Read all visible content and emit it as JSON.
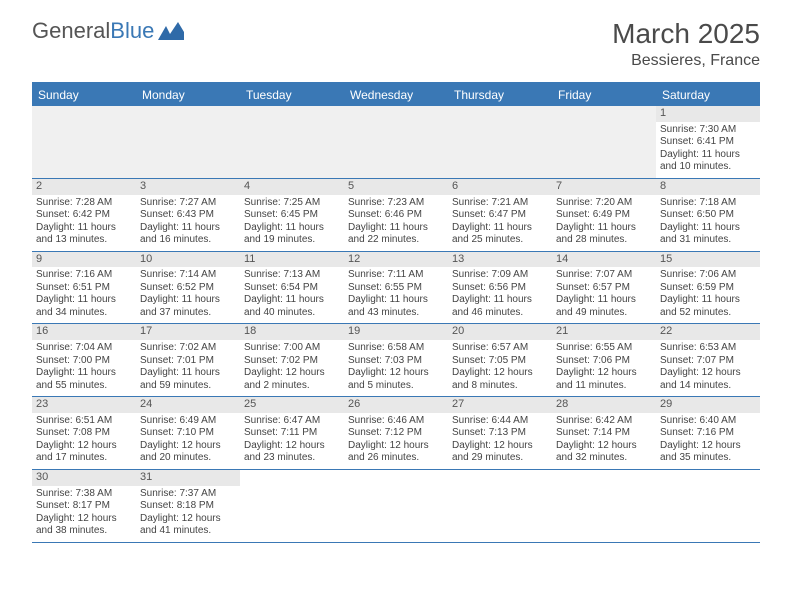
{
  "logo": {
    "general": "General",
    "blue": "Blue"
  },
  "title": "March 2025",
  "location": "Bessieres, France",
  "colors": {
    "accent": "#3a78b5",
    "strip": "#e8e8e8",
    "text": "#444444",
    "bg": "#ffffff"
  },
  "day_headers": [
    "Sunday",
    "Monday",
    "Tuesday",
    "Wednesday",
    "Thursday",
    "Friday",
    "Saturday"
  ],
  "weeks": [
    [
      null,
      null,
      null,
      null,
      null,
      null,
      {
        "n": "1",
        "sr": "7:30 AM",
        "ss": "6:41 PM",
        "dl": "11 hours and 10 minutes."
      }
    ],
    [
      {
        "n": "2",
        "sr": "7:28 AM",
        "ss": "6:42 PM",
        "dl": "11 hours and 13 minutes."
      },
      {
        "n": "3",
        "sr": "7:27 AM",
        "ss": "6:43 PM",
        "dl": "11 hours and 16 minutes."
      },
      {
        "n": "4",
        "sr": "7:25 AM",
        "ss": "6:45 PM",
        "dl": "11 hours and 19 minutes."
      },
      {
        "n": "5",
        "sr": "7:23 AM",
        "ss": "6:46 PM",
        "dl": "11 hours and 22 minutes."
      },
      {
        "n": "6",
        "sr": "7:21 AM",
        "ss": "6:47 PM",
        "dl": "11 hours and 25 minutes."
      },
      {
        "n": "7",
        "sr": "7:20 AM",
        "ss": "6:49 PM",
        "dl": "11 hours and 28 minutes."
      },
      {
        "n": "8",
        "sr": "7:18 AM",
        "ss": "6:50 PM",
        "dl": "11 hours and 31 minutes."
      }
    ],
    [
      {
        "n": "9",
        "sr": "7:16 AM",
        "ss": "6:51 PM",
        "dl": "11 hours and 34 minutes."
      },
      {
        "n": "10",
        "sr": "7:14 AM",
        "ss": "6:52 PM",
        "dl": "11 hours and 37 minutes."
      },
      {
        "n": "11",
        "sr": "7:13 AM",
        "ss": "6:54 PM",
        "dl": "11 hours and 40 minutes."
      },
      {
        "n": "12",
        "sr": "7:11 AM",
        "ss": "6:55 PM",
        "dl": "11 hours and 43 minutes."
      },
      {
        "n": "13",
        "sr": "7:09 AM",
        "ss": "6:56 PM",
        "dl": "11 hours and 46 minutes."
      },
      {
        "n": "14",
        "sr": "7:07 AM",
        "ss": "6:57 PM",
        "dl": "11 hours and 49 minutes."
      },
      {
        "n": "15",
        "sr": "7:06 AM",
        "ss": "6:59 PM",
        "dl": "11 hours and 52 minutes."
      }
    ],
    [
      {
        "n": "16",
        "sr": "7:04 AM",
        "ss": "7:00 PM",
        "dl": "11 hours and 55 minutes."
      },
      {
        "n": "17",
        "sr": "7:02 AM",
        "ss": "7:01 PM",
        "dl": "11 hours and 59 minutes."
      },
      {
        "n": "18",
        "sr": "7:00 AM",
        "ss": "7:02 PM",
        "dl": "12 hours and 2 minutes."
      },
      {
        "n": "19",
        "sr": "6:58 AM",
        "ss": "7:03 PM",
        "dl": "12 hours and 5 minutes."
      },
      {
        "n": "20",
        "sr": "6:57 AM",
        "ss": "7:05 PM",
        "dl": "12 hours and 8 minutes."
      },
      {
        "n": "21",
        "sr": "6:55 AM",
        "ss": "7:06 PM",
        "dl": "12 hours and 11 minutes."
      },
      {
        "n": "22",
        "sr": "6:53 AM",
        "ss": "7:07 PM",
        "dl": "12 hours and 14 minutes."
      }
    ],
    [
      {
        "n": "23",
        "sr": "6:51 AM",
        "ss": "7:08 PM",
        "dl": "12 hours and 17 minutes."
      },
      {
        "n": "24",
        "sr": "6:49 AM",
        "ss": "7:10 PM",
        "dl": "12 hours and 20 minutes."
      },
      {
        "n": "25",
        "sr": "6:47 AM",
        "ss": "7:11 PM",
        "dl": "12 hours and 23 minutes."
      },
      {
        "n": "26",
        "sr": "6:46 AM",
        "ss": "7:12 PM",
        "dl": "12 hours and 26 minutes."
      },
      {
        "n": "27",
        "sr": "6:44 AM",
        "ss": "7:13 PM",
        "dl": "12 hours and 29 minutes."
      },
      {
        "n": "28",
        "sr": "6:42 AM",
        "ss": "7:14 PM",
        "dl": "12 hours and 32 minutes."
      },
      {
        "n": "29",
        "sr": "6:40 AM",
        "ss": "7:16 PM",
        "dl": "12 hours and 35 minutes."
      }
    ],
    [
      {
        "n": "30",
        "sr": "7:38 AM",
        "ss": "8:17 PM",
        "dl": "12 hours and 38 minutes."
      },
      {
        "n": "31",
        "sr": "7:37 AM",
        "ss": "8:18 PM",
        "dl": "12 hours and 41 minutes."
      },
      null,
      null,
      null,
      null,
      null
    ]
  ],
  "labels": {
    "sunrise": "Sunrise: ",
    "sunset": "Sunset: ",
    "daylight": "Daylight: "
  }
}
